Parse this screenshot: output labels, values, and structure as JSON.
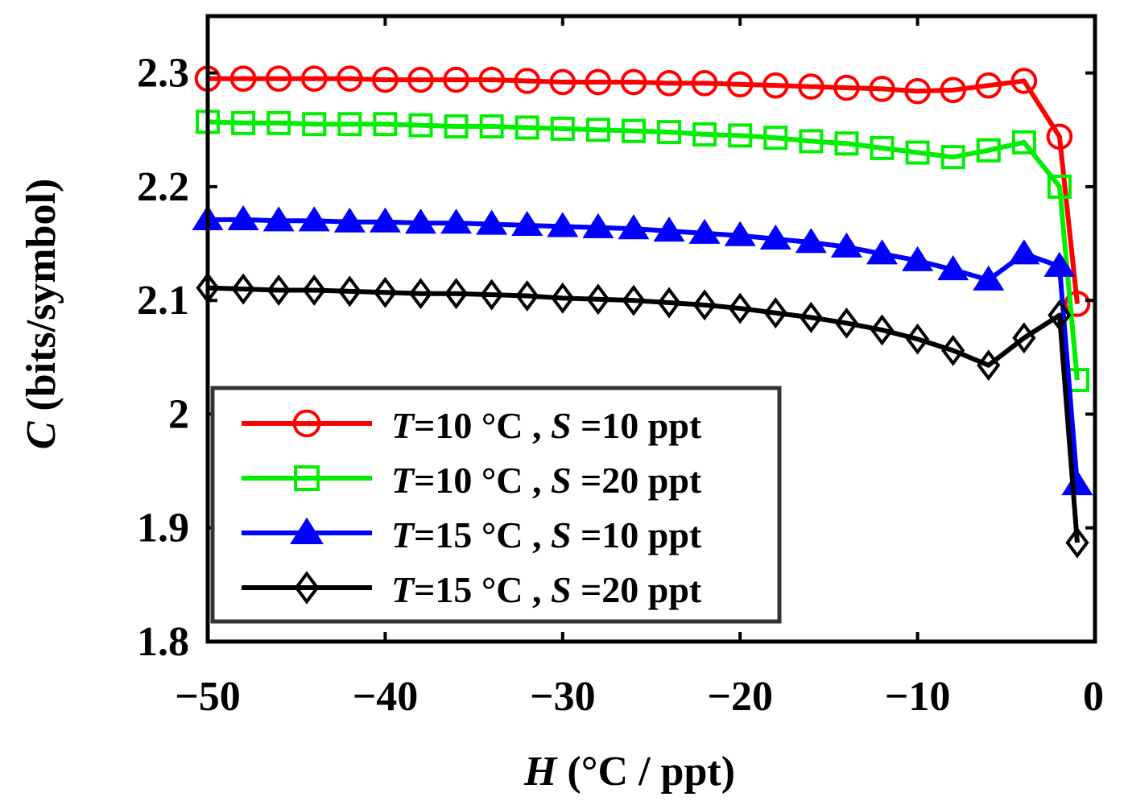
{
  "chart_data": {
    "type": "line",
    "xlabel_var": "H",
    "xlabel_units": "(°C / ppt)",
    "ylabel_var": "C",
    "ylabel_units": "(bits/symbol)",
    "xlim": [
      -50,
      0
    ],
    "ylim": [
      1.8,
      2.35
    ],
    "xticks": [
      -50,
      -40,
      -30,
      -20,
      -10,
      0
    ],
    "xtick_labels": [
      "−50",
      "−40",
      "−30",
      "−20",
      "−10",
      "0"
    ],
    "yticks": [
      1.8,
      1.9,
      2.0,
      2.1,
      2.2,
      2.3
    ],
    "ytick_labels": [
      "1.8",
      "1.9",
      "2",
      "2.1",
      "2.2",
      "2.3"
    ],
    "grid": false,
    "legend_position": "lower-left",
    "x": [
      -50,
      -48,
      -46,
      -44,
      -42,
      -40,
      -38,
      -36,
      -34,
      -32,
      -30,
      -28,
      -26,
      -24,
      -22,
      -20,
      -18,
      -16,
      -14,
      -12,
      -10,
      -8,
      -6,
      -4,
      -2,
      -1
    ],
    "series": [
      {
        "name": "T=10 °C , S =10 ppt",
        "legend": {
          "T": "T",
          "tval": "=10 °C",
          "sep": " , ",
          "S": "S",
          "sval": " =10 ppt"
        },
        "color": "#ff0000",
        "marker": "circle",
        "values": [
          2.295,
          2.295,
          2.295,
          2.295,
          2.295,
          2.294,
          2.294,
          2.294,
          2.294,
          2.293,
          2.292,
          2.292,
          2.292,
          2.291,
          2.291,
          2.29,
          2.289,
          2.288,
          2.287,
          2.286,
          2.284,
          2.285,
          2.289,
          2.293,
          2.244,
          2.097
        ]
      },
      {
        "name": "T=10 °C , S =20 ppt",
        "legend": {
          "T": "T",
          "tval": "=10 °C",
          "sep": " , ",
          "S": "S",
          "sval": " =20 ppt"
        },
        "color": "#00ee00",
        "marker": "square",
        "values": [
          2.257,
          2.256,
          2.256,
          2.255,
          2.255,
          2.255,
          2.254,
          2.253,
          2.253,
          2.252,
          2.251,
          2.25,
          2.249,
          2.248,
          2.246,
          2.245,
          2.243,
          2.24,
          2.238,
          2.234,
          2.23,
          2.226,
          2.232,
          2.239,
          2.2,
          2.03
        ]
      },
      {
        "name": "T=15 °C , S =10 ppt",
        "legend": {
          "T": "T",
          "tval": "=15 °C",
          "sep": " , ",
          "S": "S",
          "sval": " =10 ppt"
        },
        "color": "#0000ff",
        "marker": "triangle",
        "values": [
          2.171,
          2.171,
          2.17,
          2.17,
          2.169,
          2.169,
          2.168,
          2.168,
          2.167,
          2.166,
          2.165,
          2.164,
          2.163,
          2.161,
          2.159,
          2.157,
          2.154,
          2.151,
          2.147,
          2.141,
          2.135,
          2.127,
          2.118,
          2.141,
          2.13,
          1.938
        ]
      },
      {
        "name": "T=15 °C , S =20 ppt",
        "legend": {
          "T": "T",
          "tval": "=15 °C",
          "sep": " , ",
          "S": "S",
          "sval": " =20 ppt"
        },
        "color": "#000000",
        "marker": "diamond",
        "values": [
          2.111,
          2.11,
          2.109,
          2.109,
          2.108,
          2.107,
          2.106,
          2.106,
          2.105,
          2.104,
          2.102,
          2.101,
          2.1,
          2.098,
          2.096,
          2.093,
          2.089,
          2.085,
          2.08,
          2.074,
          2.066,
          2.056,
          2.043,
          2.067,
          2.087,
          1.887
        ]
      }
    ]
  }
}
